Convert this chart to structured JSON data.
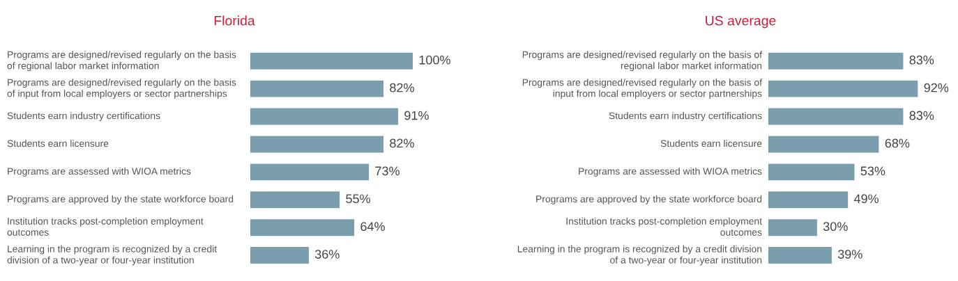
{
  "chart_data": [
    {
      "type": "bar",
      "orientation": "horizontal",
      "title": "Florida",
      "tick_labels": "y",
      "color": "#7a9eae",
      "categories": [
        "Programs are designed/revised regularly on the basis\nof regional labor market information",
        "Programs are designed/revised regularly on the basis\nof input from local employers or sector partnerships",
        "Students earn industry certifications",
        "Students earn licensure",
        "Programs are assessed with WIOA metrics",
        "Programs are approved by the state workforce board",
        "Institution tracks post-completion employment\noutcomes",
        "Learning in the program is recognized by a credit\ndivision of a two-year or four-year institution"
      ],
      "values": [
        100,
        82,
        91,
        82,
        73,
        55,
        64,
        36
      ],
      "value_labels": [
        "100%",
        "82%",
        "91%",
        "82%",
        "73%",
        "55%",
        "64%",
        "36%"
      ]
    },
    {
      "type": "bar",
      "orientation": "horizontal",
      "title": "US average",
      "tick_labels": "y",
      "color": "#7a9eae",
      "categories": [
        "Programs are designed/revised regularly on the basis of\nregional labor market information",
        "Programs are designed/revised regularly on the basis of\ninput from local employers or sector partnerships",
        "Students earn industry certifications",
        "Students earn licensure",
        "Programs are assessed with WIOA metrics",
        "Programs are approved by the state workforce board",
        "Institution tracks post-completion employment\noutcomes",
        "Learning in the program is recognized by a credit division\nof a two-year or four-year institution"
      ],
      "values": [
        83,
        92,
        83,
        68,
        53,
        49,
        30,
        39
      ],
      "value_labels": [
        "83%",
        "92%",
        "83%",
        "68%",
        "53%",
        "49%",
        "30%",
        "39%"
      ]
    }
  ]
}
